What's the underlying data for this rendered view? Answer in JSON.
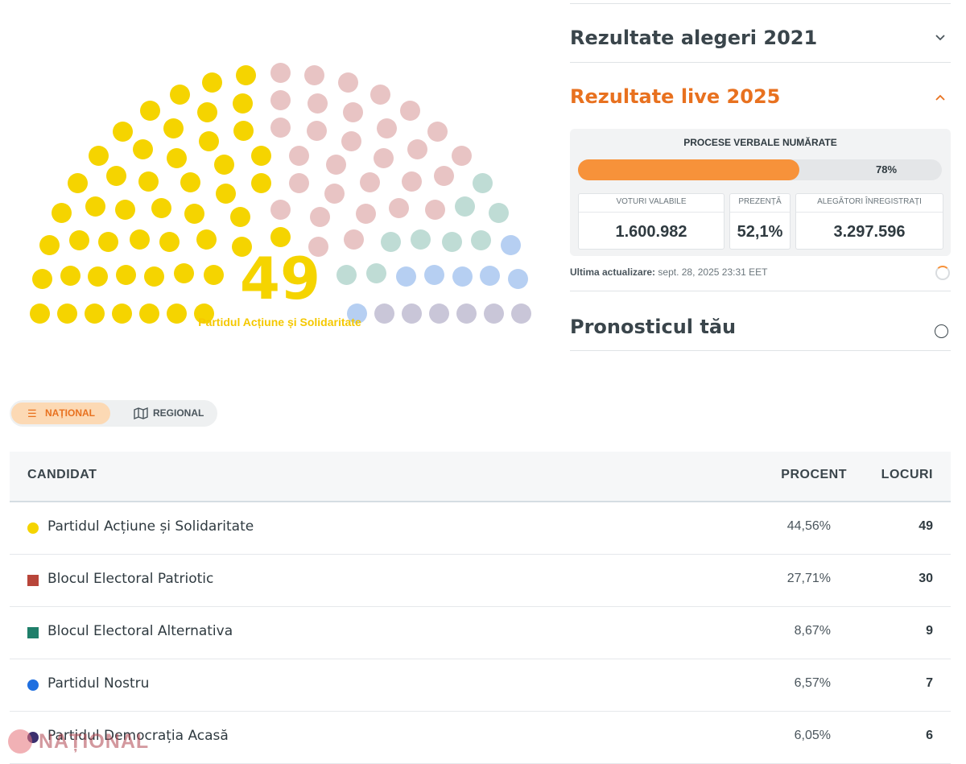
{
  "parliament": {
    "leading_seats": "49",
    "leading_party": "Partidul Acțiune și Solidaritate",
    "seat_groups": [
      {
        "party": "PAS",
        "seats": 49,
        "color": "#f5d400"
      },
      {
        "party": "BEP",
        "seats": 30,
        "color": "#e8c4c4"
      },
      {
        "party": "BEA",
        "seats": 9,
        "color": "#bfdcd5"
      },
      {
        "party": "PN",
        "seats": 7,
        "color": "#b6cff2"
      },
      {
        "party": "PDA",
        "seats": 6,
        "color": "#c9c6d8"
      }
    ]
  },
  "accordion": {
    "results_2021": "Rezultate alegeri 2021",
    "live_2025": "Rezultate live 2025",
    "prognosis": "Pronosticul tău",
    "chevron_down": "chevron-down-icon",
    "chevron_up": "chevron-up-icon",
    "title_color": "#e8711f"
  },
  "live_panel": {
    "title": "PROCESE VERBALE NUMĂRATE",
    "progress": 78,
    "progress_label": "78%",
    "stats": [
      {
        "label": "VOTURI VALABILE",
        "value": "1.600.982"
      },
      {
        "label": "PREZENȚĂ",
        "value": "52,1%"
      },
      {
        "label": "ALEGĂTORI ÎNREGISTRAȚI",
        "value": "3.297.596"
      }
    ],
    "updated_label": "Ultima actualizare:",
    "updated_value": "sept. 28, 2025 23:31 EET"
  },
  "toggle": {
    "national": "NAȚIONAL",
    "regional": "REGIONAL",
    "national_icon": "list-icon",
    "regional_icon": "map-icon"
  },
  "table": {
    "headers": {
      "candidate": "CANDIDAT",
      "percent": "PROCENT",
      "seats": "LOCURI"
    },
    "rows": [
      {
        "name": "Partidul Acțiune și Solidaritate",
        "percent": "44,56%",
        "seats": "49",
        "color": "#f5d400",
        "shape": "circle"
      },
      {
        "name": "Blocul Electoral Patriotic",
        "percent": "27,71%",
        "seats": "30",
        "color": "#b8453a",
        "shape": "square"
      },
      {
        "name": "Blocul Electoral Alternativa",
        "percent": "8,67%",
        "seats": "9",
        "color": "#1f7f6a",
        "shape": "square"
      },
      {
        "name": "Partidul Nostru",
        "percent": "6,57%",
        "seats": "7",
        "color": "#1f6fe0",
        "shape": "circle"
      },
      {
        "name": "Partidul Democrația Acasă",
        "percent": "6,05%",
        "seats": "6",
        "color": "#3b2f6e",
        "shape": "circle"
      }
    ]
  },
  "watermark": "NAȚIONAL"
}
